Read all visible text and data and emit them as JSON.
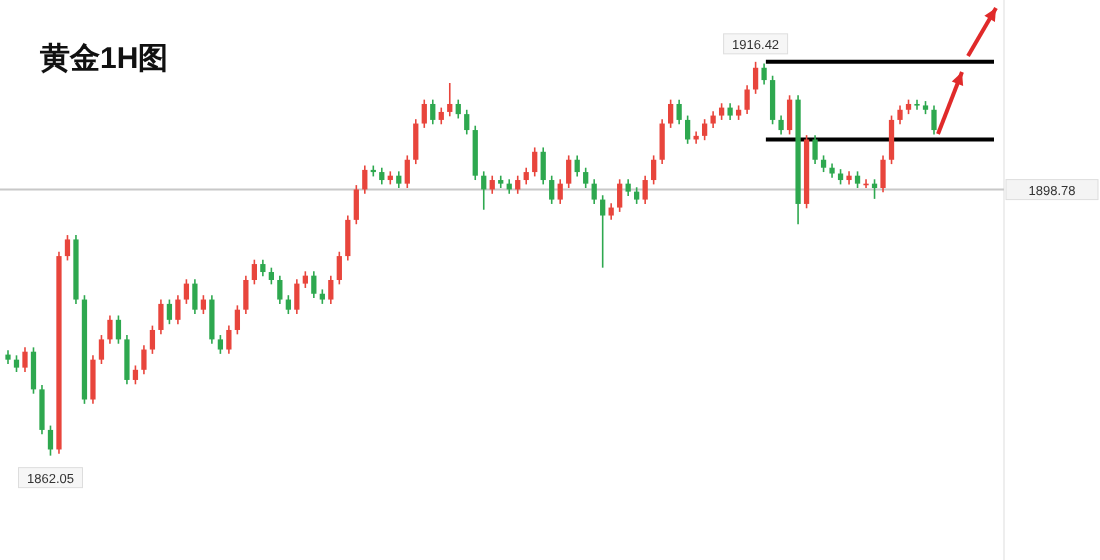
{
  "chart_data": {
    "type": "candlestick",
    "title": "黄金1H图",
    "categories": [
      null,
      null,
      null,
      null,
      null,
      null,
      null,
      null,
      null,
      null,
      null,
      null,
      null,
      null,
      null,
      null,
      null,
      null,
      null,
      null,
      null,
      null,
      null,
      null,
      null,
      null,
      null,
      null,
      null,
      null,
      null,
      null,
      null,
      null,
      null,
      null,
      null,
      null,
      null,
      null,
      null,
      null,
      null,
      null,
      null,
      null,
      null,
      null,
      null,
      null,
      null,
      null,
      null,
      null,
      null,
      null,
      null,
      null,
      null,
      null,
      null,
      null,
      null,
      null,
      null,
      null,
      null,
      null,
      null,
      null,
      null,
      null,
      null,
      null,
      null,
      null,
      null,
      null,
      null,
      null,
      null,
      null,
      null,
      null,
      null,
      null,
      null,
      null,
      null,
      null,
      null,
      null,
      null,
      null,
      null,
      null,
      null,
      null,
      null,
      null,
      null,
      null,
      null,
      null,
      null,
      null,
      null,
      null,
      null,
      null
    ],
    "colors": [
      "#2ea84f",
      "#2ea84f",
      "#e8453c",
      "#2ea84f",
      "#2ea84f",
      "#2ea84f",
      "#e8453c",
      "#e8453c",
      "#2ea84f",
      "#2ea84f",
      "#e8453c",
      "#e8453c",
      "#e8453c",
      "#2ea84f",
      "#2ea84f",
      "#e8453c",
      "#e8453c",
      "#e8453c",
      "#e8453c",
      "#2ea84f",
      "#e8453c",
      "#e8453c",
      "#2ea84f",
      "#e8453c",
      "#2ea84f",
      "#2ea84f",
      "#e8453c",
      "#e8453c",
      "#e8453c",
      "#e8453c",
      "#2ea84f",
      "#2ea84f",
      "#2ea84f",
      "#2ea84f",
      "#e8453c",
      "#e8453c",
      "#2ea84f",
      "#2ea84f",
      "#e8453c",
      "#e8453c",
      "#e8453c",
      "#e8453c",
      "#e8453c",
      "#2ea84f",
      "#2ea84f",
      "#e8453c",
      "#2ea84f",
      "#e8453c",
      "#e8453c",
      "#e8453c",
      "#2ea84f",
      "#e8453c",
      "#e8453c",
      "#2ea84f",
      "#2ea84f",
      "#2ea84f",
      "#2ea84f",
      "#e8453c",
      "#2ea84f",
      "#2ea84f",
      "#e8453c",
      "#e8453c",
      "#e8453c",
      "#2ea84f",
      "#2ea84f",
      "#e8453c",
      "#e8453c",
      "#2ea84f",
      "#2ea84f",
      "#2ea84f",
      "#2ea84f",
      "#e8453c",
      "#e8453c",
      "#2ea84f",
      "#2ea84f",
      "#e8453c",
      "#e8453c",
      "#e8453c",
      "#e8453c",
      "#2ea84f",
      "#2ea84f",
      "#e8453c",
      "#e8453c",
      "#e8453c",
      "#e8453c",
      "#2ea84f",
      "#e8453c",
      "#e8453c",
      "#e8453c",
      "#2ea84f",
      "#2ea84f",
      "#2ea84f",
      "#e8453c",
      "#2ea84f",
      "#e8453c",
      "#2ea84f",
      "#2ea84f",
      "#2ea84f",
      "#2ea84f",
      "#e8453c",
      "#2ea84f",
      "#e8453c",
      "#2ea84f",
      "#e8453c",
      "#e8453c",
      "#e8453c",
      "#e8453c",
      "#2ea84f",
      "#2ea84f",
      "#2ea84f"
    ],
    "ohlc": [
      [
        1876.0,
        1876.6,
        1874.7,
        1875.3
      ],
      [
        1875.3,
        1875.9,
        1873.6,
        1874.2
      ],
      [
        1874.2,
        1877.0,
        1873.6,
        1876.4
      ],
      [
        1876.4,
        1877.0,
        1870.6,
        1871.2
      ],
      [
        1871.2,
        1871.8,
        1865.0,
        1865.6
      ],
      [
        1865.6,
        1866.2,
        1862.05,
        1862.9
      ],
      [
        1862.9,
        1890.2,
        1862.3,
        1889.6
      ],
      [
        1889.6,
        1892.5,
        1889.0,
        1891.9
      ],
      [
        1891.9,
        1892.5,
        1883.0,
        1883.6
      ],
      [
        1883.6,
        1884.2,
        1869.2,
        1869.8
      ],
      [
        1869.8,
        1875.9,
        1869.2,
        1875.3
      ],
      [
        1875.3,
        1878.7,
        1874.7,
        1878.1
      ],
      [
        1878.1,
        1881.4,
        1877.5,
        1880.8
      ],
      [
        1880.8,
        1881.4,
        1877.5,
        1878.1
      ],
      [
        1878.1,
        1878.7,
        1871.9,
        1872.5
      ],
      [
        1872.5,
        1874.5,
        1871.9,
        1873.9
      ],
      [
        1873.9,
        1877.3,
        1873.3,
        1876.7
      ],
      [
        1876.7,
        1880.0,
        1876.1,
        1879.4
      ],
      [
        1879.4,
        1883.6,
        1878.8,
        1883.0
      ],
      [
        1883.0,
        1883.6,
        1880.2,
        1880.8
      ],
      [
        1880.8,
        1884.2,
        1880.2,
        1883.6
      ],
      [
        1883.6,
        1886.4,
        1883.0,
        1885.8
      ],
      [
        1885.8,
        1886.4,
        1881.6,
        1882.2
      ],
      [
        1882.2,
        1884.2,
        1881.6,
        1883.6
      ],
      [
        1883.6,
        1884.2,
        1877.5,
        1878.1
      ],
      [
        1878.1,
        1878.7,
        1876.1,
        1876.7
      ],
      [
        1876.7,
        1880.0,
        1876.1,
        1879.4
      ],
      [
        1879.4,
        1882.8,
        1878.8,
        1882.2
      ],
      [
        1882.2,
        1886.9,
        1881.6,
        1886.3
      ],
      [
        1886.3,
        1889.1,
        1885.7,
        1888.5
      ],
      [
        1888.5,
        1889.1,
        1886.8,
        1887.4
      ],
      [
        1887.4,
        1888.0,
        1885.7,
        1886.3
      ],
      [
        1886.3,
        1886.9,
        1883.0,
        1883.6
      ],
      [
        1883.6,
        1884.2,
        1881.6,
        1882.2
      ],
      [
        1882.2,
        1886.4,
        1881.6,
        1885.8
      ],
      [
        1885.8,
        1887.5,
        1885.2,
        1886.9
      ],
      [
        1886.9,
        1887.5,
        1883.8,
        1884.4
      ],
      [
        1884.4,
        1885.0,
        1883.0,
        1883.6
      ],
      [
        1883.6,
        1886.9,
        1883.0,
        1886.3
      ],
      [
        1886.3,
        1890.2,
        1885.7,
        1889.6
      ],
      [
        1889.6,
        1895.2,
        1889.0,
        1894.6
      ],
      [
        1894.6,
        1899.4,
        1894.0,
        1898.8
      ],
      [
        1898.8,
        1902.1,
        1898.2,
        1901.5
      ],
      [
        1901.5,
        1902.1,
        1900.6,
        1901.2
      ],
      [
        1901.2,
        1901.8,
        1899.5,
        1900.1
      ],
      [
        1900.1,
        1901.3,
        1899.5,
        1900.7
      ],
      [
        1900.7,
        1901.3,
        1899.0,
        1899.6
      ],
      [
        1899.6,
        1903.5,
        1899.0,
        1902.9
      ],
      [
        1902.9,
        1908.5,
        1902.3,
        1907.9
      ],
      [
        1907.9,
        1911.2,
        1907.3,
        1910.6
      ],
      [
        1910.6,
        1911.2,
        1907.8,
        1908.4
      ],
      [
        1908.4,
        1910.1,
        1907.8,
        1909.5
      ],
      [
        1909.5,
        1913.5,
        1908.9,
        1910.6
      ],
      [
        1910.6,
        1911.2,
        1908.6,
        1909.2
      ],
      [
        1909.2,
        1909.8,
        1906.4,
        1907.0
      ],
      [
        1907.0,
        1907.6,
        1900.1,
        1900.7
      ],
      [
        1900.7,
        1901.3,
        1896.0,
        1898.8
      ],
      [
        1898.8,
        1900.7,
        1898.2,
        1900.1
      ],
      [
        1900.1,
        1900.7,
        1899.0,
        1899.6
      ],
      [
        1899.6,
        1900.2,
        1898.2,
        1898.8
      ],
      [
        1898.8,
        1900.7,
        1898.2,
        1900.1
      ],
      [
        1900.1,
        1901.8,
        1899.5,
        1901.2
      ],
      [
        1901.2,
        1904.6,
        1900.6,
        1904.0
      ],
      [
        1904.0,
        1904.6,
        1899.5,
        1900.1
      ],
      [
        1900.1,
        1900.7,
        1896.8,
        1897.4
      ],
      [
        1897.4,
        1900.2,
        1896.8,
        1899.6
      ],
      [
        1899.6,
        1903.5,
        1899.0,
        1902.9
      ],
      [
        1902.9,
        1903.5,
        1900.6,
        1901.2
      ],
      [
        1901.2,
        1901.8,
        1899.0,
        1899.6
      ],
      [
        1899.6,
        1900.2,
        1896.8,
        1897.4
      ],
      [
        1897.4,
        1898.0,
        1888.0,
        1895.2
      ],
      [
        1895.2,
        1896.9,
        1894.6,
        1896.3
      ],
      [
        1896.3,
        1900.2,
        1895.7,
        1899.6
      ],
      [
        1899.6,
        1900.2,
        1897.9,
        1898.5
      ],
      [
        1898.5,
        1899.1,
        1896.8,
        1897.4
      ],
      [
        1897.4,
        1900.7,
        1896.8,
        1900.1
      ],
      [
        1900.1,
        1903.5,
        1899.5,
        1902.9
      ],
      [
        1902.9,
        1908.5,
        1902.3,
        1907.9
      ],
      [
        1907.9,
        1911.2,
        1907.3,
        1910.6
      ],
      [
        1910.6,
        1911.2,
        1907.8,
        1908.4
      ],
      [
        1908.4,
        1909.0,
        1905.1,
        1905.7
      ],
      [
        1905.7,
        1906.8,
        1905.1,
        1906.2
      ],
      [
        1906.2,
        1908.5,
        1905.6,
        1907.9
      ],
      [
        1907.9,
        1909.6,
        1907.3,
        1909.0
      ],
      [
        1909.0,
        1910.7,
        1908.4,
        1910.1
      ],
      [
        1910.1,
        1910.7,
        1908.4,
        1909.0
      ],
      [
        1909.0,
        1910.4,
        1908.4,
        1909.8
      ],
      [
        1909.8,
        1913.2,
        1909.2,
        1912.6
      ],
      [
        1912.6,
        1916.42,
        1912.0,
        1915.6
      ],
      [
        1915.6,
        1916.2,
        1913.3,
        1913.9
      ],
      [
        1913.9,
        1914.5,
        1907.8,
        1908.4
      ],
      [
        1908.4,
        1909.0,
        1906.4,
        1907.0
      ],
      [
        1907.0,
        1911.8,
        1906.4,
        1911.2
      ],
      [
        1911.2,
        1911.8,
        1894.0,
        1896.8
      ],
      [
        1896.8,
        1906.3,
        1896.2,
        1905.7
      ],
      [
        1905.7,
        1906.3,
        1902.3,
        1902.9
      ],
      [
        1902.9,
        1903.5,
        1901.2,
        1901.8
      ],
      [
        1901.8,
        1902.4,
        1900.4,
        1901.0
      ],
      [
        1901.0,
        1901.6,
        1899.5,
        1900.1
      ],
      [
        1900.1,
        1901.3,
        1899.5,
        1900.7
      ],
      [
        1900.7,
        1901.3,
        1899.0,
        1899.6
      ],
      [
        1899.6,
        1900.2,
        1899.0,
        1899.6
      ],
      [
        1899.6,
        1900.2,
        1897.5,
        1899.0
      ],
      [
        1899.0,
        1903.5,
        1898.4,
        1902.9
      ],
      [
        1902.9,
        1909.0,
        1902.3,
        1908.4
      ],
      [
        1908.4,
        1910.4,
        1907.8,
        1909.8
      ],
      [
        1909.8,
        1911.2,
        1909.2,
        1910.6
      ],
      [
        1910.6,
        1911.2,
        1909.8,
        1910.4
      ],
      [
        1910.4,
        1911.0,
        1909.2,
        1909.8
      ],
      [
        1909.8,
        1910.4,
        1906.4,
        1907.0
      ]
    ],
    "ref_lines": [
      {
        "axis": "y",
        "value": 1916.42,
        "color": "#000000"
      },
      {
        "axis": "y",
        "value": 1905.7,
        "color": "#000000"
      },
      {
        "axis": "y",
        "value": 1898.78,
        "label": "1898.78",
        "color": "#c8c8c8"
      }
    ],
    "annotations": [
      {
        "text": "1916.42",
        "y": 1916.42
      },
      {
        "text": "1862.05",
        "y": 1862.05
      }
    ]
  }
}
